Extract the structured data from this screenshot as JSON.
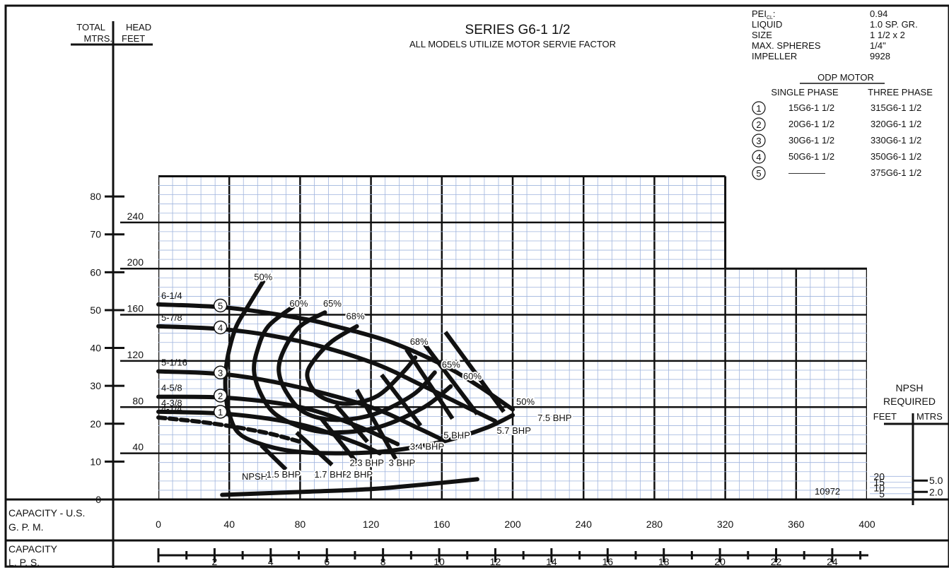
{
  "colors": {
    "ink": "#111111",
    "grid_minor": "#9fb4dd",
    "grid_major": "#111111",
    "background": "#ffffff"
  },
  "header": {
    "title": "SERIES  G6-1 1/2",
    "subtitle": "ALL MODELS UTILIZE MOTOR SERVIE FACTOR",
    "left_head_label": "TOTAL",
    "left_head_label2": "HEAD",
    "mtrs_label": "MTRS.",
    "feet_label": "FEET"
  },
  "specs": [
    {
      "label": "PEI",
      "sub": "CL",
      "suffix": ":",
      "value": "0.94"
    },
    {
      "label": "LIQUID",
      "sub": "",
      "suffix": "",
      "value": "1.0 SP. GR."
    },
    {
      "label": "SIZE",
      "sub": "",
      "suffix": "",
      "value": "1 1/2 x 2"
    },
    {
      "label": "MAX. SPHERES",
      "sub": "",
      "suffix": "",
      "value": "1/4\""
    },
    {
      "label": "IMPELLER",
      "sub": "",
      "suffix": "",
      "value": "9928"
    }
  ],
  "motor_table": {
    "heading": "ODP MOTOR",
    "col_single": "SINGLE PHASE",
    "col_three": "THREE PHASE",
    "rows": [
      {
        "num": "1",
        "single": "15G6-1 1/2",
        "three": "315G6-1 1/2"
      },
      {
        "num": "2",
        "single": "20G6-1 1/2",
        "three": "320G6-1 1/2"
      },
      {
        "num": "3",
        "single": "30G6-1 1/2",
        "three": "330G6-1 1/2"
      },
      {
        "num": "4",
        "single": "50G6-1 1/2",
        "three": "350G6-1 1/2"
      },
      {
        "num": "5",
        "single": "————",
        "three": "375G6-1 1/2"
      }
    ]
  },
  "axis_labels": {
    "capacity_gpm": "CAPACITY - U.S.",
    "capacity_gpm2": "G. P. M.",
    "capacity_lps": "CAPACITY",
    "capacity_lps2": "L. P. S.",
    "npsh1": "NPSH",
    "npsh2": "REQUIRED",
    "npsh_feet": "FEET",
    "npsh_mtrs": "MTRS"
  },
  "drawing_number": "10972",
  "chart_data": {
    "type": "line",
    "x_gpm": {
      "range": [
        0,
        400
      ],
      "ticks": [
        0,
        40,
        80,
        120,
        160,
        200,
        240,
        280,
        320,
        360,
        400
      ]
    },
    "x_lps": {
      "ticks": [
        2,
        4,
        6,
        8,
        10,
        12,
        14,
        16,
        18,
        20,
        22,
        24
      ]
    },
    "y_feet": {
      "range": [
        0,
        280
      ],
      "ticks": [
        40,
        80,
        120,
        160,
        200,
        240
      ]
    },
    "y_mtrs": {
      "ticks": [
        0,
        10,
        20,
        30,
        40,
        50,
        60,
        70,
        80
      ]
    },
    "npsh_feet_ticks": [
      5,
      10,
      15,
      20
    ],
    "npsh_mtrs_ticks": [
      2.0,
      5.0
    ],
    "grid": true,
    "impeller_curves": [
      {
        "diameter": "6-1/4",
        "motor": "5",
        "points": [
          [
            0,
            169
          ],
          [
            40,
            166
          ],
          [
            80,
            157
          ],
          [
            100,
            150
          ],
          [
            130,
            137
          ],
          [
            160,
            117
          ],
          [
            180,
            99
          ],
          [
            200,
            78
          ]
        ]
      },
      {
        "diameter": "5-7/8",
        "motor": "4",
        "points": [
          [
            0,
            150
          ],
          [
            40,
            147
          ],
          [
            80,
            137
          ],
          [
            120,
            119
          ],
          [
            150,
            98
          ],
          [
            170,
            83
          ],
          [
            190,
            68
          ]
        ]
      },
      {
        "diameter": "5-1/16",
        "motor": "3",
        "points": [
          [
            0,
            111
          ],
          [
            40,
            108
          ],
          [
            80,
            97
          ],
          [
            120,
            80
          ],
          [
            145,
            63
          ],
          [
            160,
            52
          ]
        ]
      },
      {
        "diameter": "4-5/8",
        "motor": "2",
        "points": [
          [
            0,
            89
          ],
          [
            40,
            88
          ],
          [
            80,
            80
          ],
          [
            110,
            65
          ],
          [
            135,
            48
          ]
        ]
      },
      {
        "diameter": "4-3/8",
        "motor": "1",
        "points": [
          [
            0,
            76
          ],
          [
            40,
            74
          ],
          [
            80,
            65
          ],
          [
            110,
            50
          ],
          [
            125,
            40
          ]
        ]
      },
      {
        "diameter": "4-1/4",
        "motor": "",
        "dashed": true,
        "points": [
          [
            0,
            71
          ],
          [
            30,
            66
          ],
          [
            60,
            58
          ],
          [
            80,
            50
          ]
        ]
      }
    ],
    "efficiency_curves": [
      {
        "label": "50%",
        "points": [
          [
            60,
            191
          ],
          [
            50,
            166
          ],
          [
            44,
            150
          ],
          [
            40,
            130
          ],
          [
            38,
            111
          ],
          [
            38,
            91
          ],
          [
            40,
            74
          ],
          [
            45,
            58
          ],
          [
            56,
            49
          ],
          [
            75,
            42
          ],
          [
            100,
            40
          ],
          [
            130,
            42
          ],
          [
            160,
            50
          ],
          [
            185,
            62
          ],
          [
            200,
            73
          ]
        ]
      },
      {
        "label": "60%",
        "points": [
          [
            76,
            167
          ],
          [
            62,
            150
          ],
          [
            56,
            130
          ],
          [
            54,
            111
          ],
          [
            58,
            91
          ],
          [
            66,
            74
          ],
          [
            82,
            62
          ],
          [
            100,
            58
          ],
          [
            125,
            63
          ],
          [
            150,
            80
          ],
          [
            165,
            98
          ]
        ]
      },
      {
        "label": "65%",
        "points": [
          [
            94,
            162
          ],
          [
            80,
            150
          ],
          [
            71,
            130
          ],
          [
            68,
            111
          ],
          [
            73,
            91
          ],
          [
            83,
            75
          ],
          [
            100,
            69
          ],
          [
            122,
            74
          ],
          [
            144,
            91
          ],
          [
            156,
            110
          ]
        ]
      },
      {
        "label": "68%",
        "points": [
          [
            112,
            150
          ],
          [
            98,
            137
          ],
          [
            88,
            121
          ],
          [
            84,
            108
          ],
          [
            88,
            94
          ],
          [
            96,
            86
          ],
          [
            108,
            83
          ],
          [
            124,
            90
          ],
          [
            138,
            110
          ],
          [
            145,
            123
          ]
        ]
      }
    ],
    "efficiency_label_positions": [
      {
        "label": "50%",
        "x": 54,
        "y": 190
      },
      {
        "label": "60%",
        "x": 74,
        "y": 167
      },
      {
        "label": "65%",
        "x": 93,
        "y": 167
      },
      {
        "label": "68%",
        "x": 106,
        "y": 156
      },
      {
        "label": "68%",
        "x": 142,
        "y": 134
      },
      {
        "label": "65%",
        "x": 160,
        "y": 114
      },
      {
        "label": "60%",
        "x": 172,
        "y": 104
      },
      {
        "label": "50%",
        "x": 202,
        "y": 82
      }
    ],
    "bhp_lines": [
      {
        "label": "1.5 BHP",
        "points": [
          [
            58,
            47
          ],
          [
            72,
            26
          ]
        ]
      },
      {
        "label": "1.7 BHP",
        "points": [
          [
            78,
            58
          ],
          [
            98,
            30
          ]
        ]
      },
      {
        "label": "2 BHP",
        "points": [
          [
            92,
            70
          ],
          [
            112,
            32
          ]
        ]
      },
      {
        "label": "2.3 BHP",
        "points": [
          [
            100,
            82
          ],
          [
            118,
            50
          ]
        ]
      },
      {
        "label": "3 BHP",
        "points": [
          [
            112,
            95
          ],
          [
            134,
            35
          ]
        ]
      },
      {
        "label": "3.4 BHP",
        "points": [
          [
            126,
            108
          ],
          [
            148,
            64
          ]
        ]
      },
      {
        "label": "5 BHP",
        "points": [
          [
            140,
            130
          ],
          [
            166,
            70
          ]
        ]
      },
      {
        "label": "5.7 BHP",
        "points": [
          [
            150,
            135
          ],
          [
            180,
            74
          ]
        ]
      },
      {
        "label": "7.5 BHP",
        "points": [
          [
            162,
            145
          ],
          [
            195,
            76
          ]
        ]
      }
    ],
    "bhp_label_positions": [
      {
        "label": "1.5 BHP",
        "x": 61,
        "y": 19
      },
      {
        "label": "1.7 BHP",
        "x": 88,
        "y": 19
      },
      {
        "label": "2 BHP",
        "x": 106,
        "y": 19
      },
      {
        "label": "2.3 BHP",
        "x": 108,
        "y": 29
      },
      {
        "label": "3 BHP",
        "x": 130,
        "y": 29
      },
      {
        "label": "3.4 BHP",
        "x": 142,
        "y": 43
      },
      {
        "label": "5 BHP",
        "x": 161,
        "y": 53
      },
      {
        "label": "5.7 BHP",
        "x": 191,
        "y": 57
      },
      {
        "label": "7.5 BHP",
        "x": 214,
        "y": 68
      }
    ],
    "npsh_curve": {
      "label": "NPSH",
      "points": [
        [
          36,
          4
        ],
        [
          80,
          6.5
        ],
        [
          120,
          9
        ],
        [
          150,
          13
        ],
        [
          180,
          17.5
        ]
      ]
    }
  }
}
